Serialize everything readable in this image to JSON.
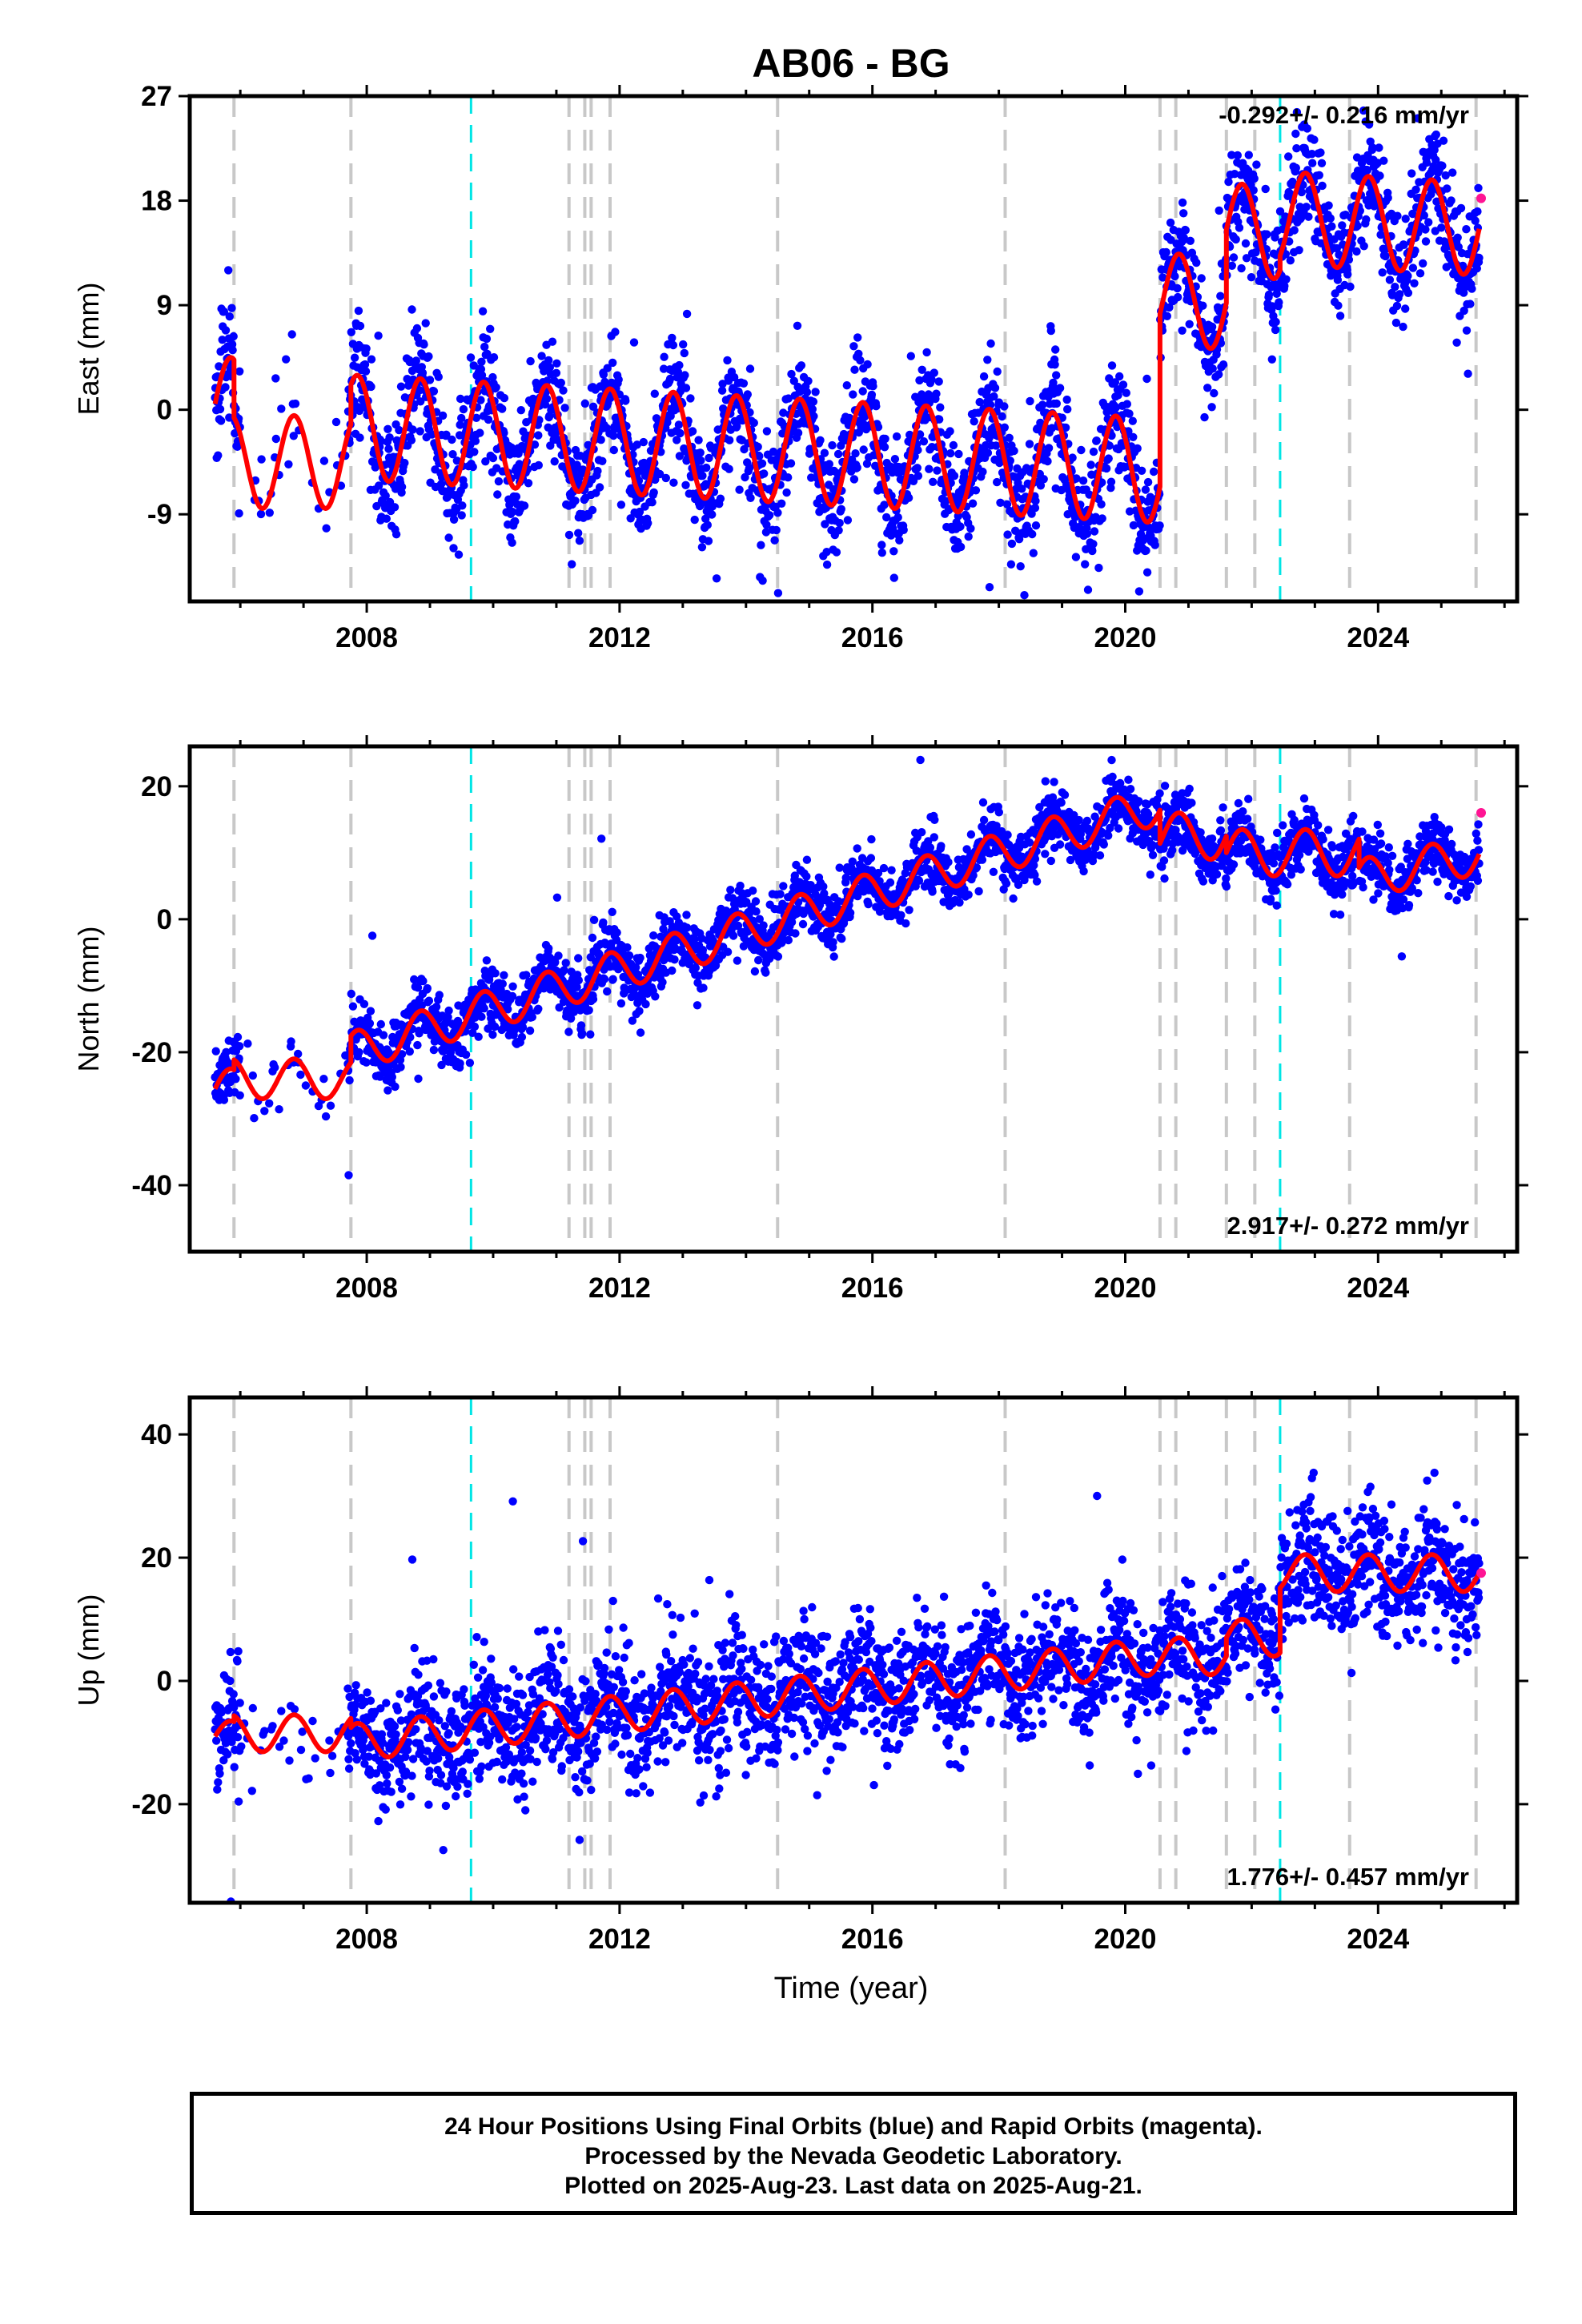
{
  "title": "AB06 - BG",
  "xlabel": "Time (year)",
  "footer": {
    "line1": "24 Hour Positions Using Final Orbits (blue) and Rapid Orbits (magenta).",
    "line2": "Processed by the Nevada Geodetic Laboratory.",
    "line3": "Plotted on 2025-Aug-23. Last data on 2025-Aug-21."
  },
  "colors": {
    "final_points": "#0000ff",
    "rapid_points": "#ff1493",
    "model": "#ff0000",
    "equipment_change_lines": "#c8c8c8",
    "earthquake_lines": "#00e5e5"
  },
  "chart_data": [
    {
      "type": "scatter",
      "component": "east",
      "ylabel": "East (mm)",
      "rate_label": "-0.292+/- 0.216 mm/yr",
      "xlim": [
        2005.2,
        2026.2
      ],
      "ylim": [
        -16.5,
        27
      ],
      "xticks": [
        2008,
        2012,
        2016,
        2020,
        2024
      ],
      "yticks": [
        -9,
        0,
        9,
        18,
        27
      ],
      "grid": false,
      "equipment_change_years": [
        2005.9,
        2007.75,
        2011.2,
        2011.45,
        2011.55,
        2011.85,
        2014.5,
        2018.1,
        2020.55,
        2020.8,
        2021.6,
        2022.05,
        2023.55,
        2025.55
      ],
      "earthquake_years": [
        2009.65,
        2022.45
      ],
      "model": {
        "segments": [
          {
            "start": 2005.6,
            "end": 2005.9,
            "offset": 0.5,
            "rate": 0.0,
            "amp": 4.0
          },
          {
            "start": 2005.9,
            "end": 2007.75,
            "offset": -4.5,
            "rate": 0.0,
            "amp": 4.0
          },
          {
            "start": 2007.75,
            "end": 2020.55,
            "offset": -1.5,
            "rate": -0.292,
            "amp": 4.5
          },
          {
            "start": 2020.55,
            "end": 2021.6,
            "offset": 9.5,
            "rate": -0.292,
            "amp": 4.0
          },
          {
            "start": 2021.6,
            "end": 2022.45,
            "offset": 15.5,
            "rate": -0.292,
            "amp": 4.0
          },
          {
            "start": 2022.45,
            "end": 2025.6,
            "offset": 16.5,
            "rate": -0.292,
            "amp": 4.0
          }
        ],
        "noise": 2.5
      },
      "rapid_points": [
        {
          "x": 2025.63,
          "y": 18.2
        }
      ]
    },
    {
      "type": "scatter",
      "component": "north",
      "ylabel": "North (mm)",
      "rate_label": "2.917+/- 0.272 mm/yr",
      "xlim": [
        2005.2,
        2026.2
      ],
      "ylim": [
        -50,
        26
      ],
      "xticks": [
        2008,
        2012,
        2016,
        2020,
        2024
      ],
      "yticks": [
        -40,
        -20,
        0,
        20
      ],
      "grid": false,
      "equipment_change_years": [
        2005.9,
        2007.75,
        2011.2,
        2011.45,
        2011.55,
        2011.85,
        2014.5,
        2018.1,
        2020.55,
        2020.8,
        2021.6,
        2022.05,
        2023.55,
        2025.55
      ],
      "earthquake_years": [
        2009.65,
        2022.45
      ],
      "model": {
        "segments": [
          {
            "start": 2005.6,
            "end": 2005.9,
            "offset": -25.5,
            "rate": 0.0,
            "amp": 3.0
          },
          {
            "start": 2005.9,
            "end": 2007.75,
            "offset": -24.0,
            "rate": 0.0,
            "amp": 3.0
          },
          {
            "start": 2007.75,
            "end": 2020.55,
            "offset": -20.0,
            "rate": 2.917,
            "amp": 3.0
          },
          {
            "start": 2020.55,
            "end": 2021.6,
            "offset": 12.5,
            "rate": 0.0,
            "amp": 3.5
          },
          {
            "start": 2021.6,
            "end": 2023.7,
            "offset": 10.0,
            "rate": 0.0,
            "amp": 3.5
          },
          {
            "start": 2023.7,
            "end": 2025.6,
            "offset": 6.0,
            "rate": 2.0,
            "amp": 3.0
          }
        ],
        "noise": 2.3
      },
      "rapid_points": [
        {
          "x": 2025.63,
          "y": 16.0
        }
      ]
    },
    {
      "type": "scatter",
      "component": "up",
      "ylabel": "Up (mm)",
      "rate_label": "1.776+/- 0.457 mm/yr",
      "xlim": [
        2005.2,
        2026.2
      ],
      "ylim": [
        -36,
        46
      ],
      "xticks": [
        2008,
        2012,
        2016,
        2020,
        2024
      ],
      "yticks": [
        -20,
        0,
        20,
        40
      ],
      "grid": false,
      "equipment_change_years": [
        2005.9,
        2007.75,
        2011.2,
        2011.45,
        2011.55,
        2011.85,
        2014.5,
        2018.1,
        2020.55,
        2020.8,
        2021.6,
        2022.05,
        2023.55,
        2025.55
      ],
      "earthquake_years": [
        2009.65,
        2022.45
      ],
      "model": {
        "segments": [
          {
            "start": 2005.6,
            "end": 2005.9,
            "offset": -9.0,
            "rate": 0.0,
            "amp": 2.5
          },
          {
            "start": 2005.9,
            "end": 2007.75,
            "offset": -8.5,
            "rate": 0.0,
            "amp": 3.0
          },
          {
            "start": 2007.75,
            "end": 2020.55,
            "offset": -10.0,
            "rate": 1.1,
            "amp": 3.0
          },
          {
            "start": 2020.55,
            "end": 2021.6,
            "offset": 4.0,
            "rate": 0.0,
            "amp": 3.0
          },
          {
            "start": 2021.6,
            "end": 2022.45,
            "offset": 7.0,
            "rate": 0.0,
            "amp": 3.0
          },
          {
            "start": 2022.45,
            "end": 2025.6,
            "offset": 17.5,
            "rate": 0.0,
            "amp": 3.0
          }
        ],
        "noise": 5.0
      },
      "rapid_points": [
        {
          "x": 2025.63,
          "y": 17.5
        }
      ]
    }
  ]
}
